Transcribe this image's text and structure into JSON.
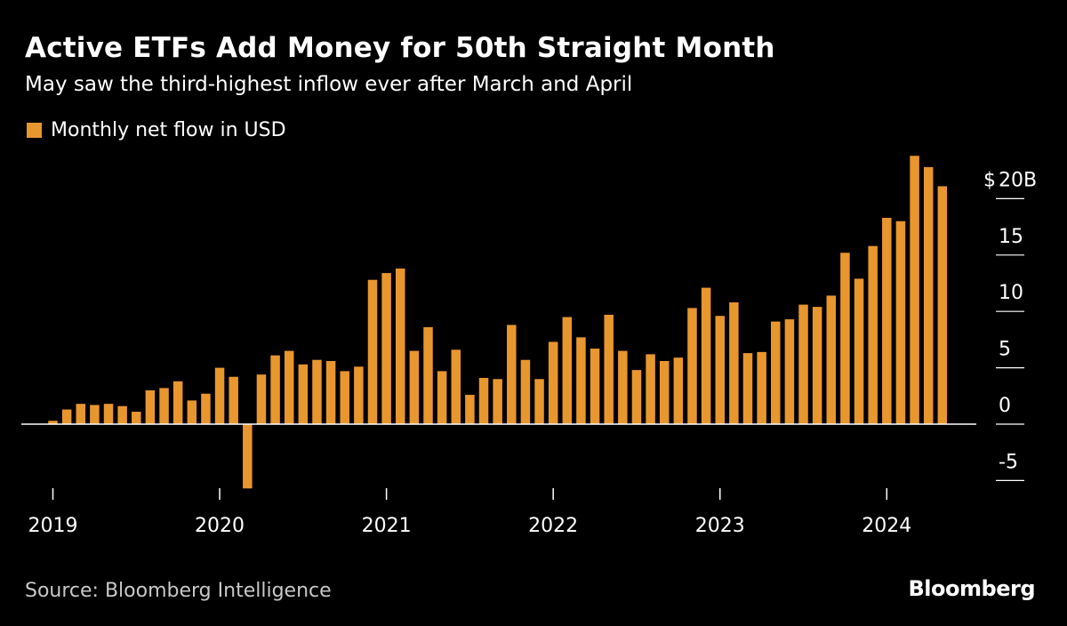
{
  "colors": {
    "bar": "#e8962e",
    "background": "#000000",
    "axis": "#ffffff",
    "tick": "#ffffff"
  },
  "chart_data": {
    "type": "bar",
    "title": "Active ETFs Add Money for 50th Straight Month",
    "subtitle": "May saw the third-highest inflow ever after March and April",
    "legend": [
      "Monthly net flow in USD"
    ],
    "y_unit_label": "$",
    "y_ticks": [
      {
        "value": 20,
        "label": "20B"
      },
      {
        "value": 15,
        "label": "15"
      },
      {
        "value": 10,
        "label": "10"
      },
      {
        "value": 5,
        "label": "5"
      },
      {
        "value": 0,
        "label": "0"
      },
      {
        "value": -5,
        "label": "-5"
      }
    ],
    "ylim": [
      -5.8,
      24
    ],
    "x_ticks": [
      {
        "index": 0,
        "label": "2019"
      },
      {
        "index": 12,
        "label": "2020"
      },
      {
        "index": 24,
        "label": "2021"
      },
      {
        "index": 36,
        "label": "2022"
      },
      {
        "index": 48,
        "label": "2023"
      },
      {
        "index": 60,
        "label": "2024"
      }
    ],
    "categories": [
      "2019-01",
      "2019-02",
      "2019-03",
      "2019-04",
      "2019-05",
      "2019-06",
      "2019-07",
      "2019-08",
      "2019-09",
      "2019-10",
      "2019-11",
      "2019-12",
      "2020-01",
      "2020-02",
      "2020-03",
      "2020-04",
      "2020-05",
      "2020-06",
      "2020-07",
      "2020-08",
      "2020-09",
      "2020-10",
      "2020-11",
      "2020-12",
      "2021-01",
      "2021-02",
      "2021-03",
      "2021-04",
      "2021-05",
      "2021-06",
      "2021-07",
      "2021-08",
      "2021-09",
      "2021-10",
      "2021-11",
      "2021-12",
      "2022-01",
      "2022-02",
      "2022-03",
      "2022-04",
      "2022-05",
      "2022-06",
      "2022-07",
      "2022-08",
      "2022-09",
      "2022-10",
      "2022-11",
      "2022-12",
      "2023-01",
      "2023-02",
      "2023-03",
      "2023-04",
      "2023-05",
      "2023-06",
      "2023-07",
      "2023-08",
      "2023-09",
      "2023-10",
      "2023-11",
      "2023-12",
      "2024-01",
      "2024-02",
      "2024-03",
      "2024-04",
      "2024-05"
    ],
    "values": [
      0.3,
      1.3,
      1.8,
      1.7,
      1.8,
      1.6,
      1.1,
      3.0,
      3.2,
      3.8,
      2.1,
      2.7,
      5.0,
      4.2,
      -5.7,
      4.4,
      6.1,
      6.5,
      5.3,
      5.7,
      5.6,
      4.7,
      5.1,
      12.8,
      13.4,
      13.8,
      6.5,
      8.6,
      4.7,
      6.6,
      2.6,
      4.1,
      4.0,
      8.8,
      5.7,
      4.0,
      7.3,
      9.5,
      7.7,
      6.7,
      9.7,
      6.5,
      4.8,
      6.2,
      5.6,
      5.9,
      10.3,
      12.1,
      9.6,
      10.8,
      6.3,
      6.4,
      9.1,
      9.3,
      10.6,
      10.4,
      11.4,
      15.2,
      12.9,
      15.8,
      18.3,
      18.0,
      23.8,
      22.8,
      21.1
    ]
  },
  "source": "Source: Bloomberg Intelligence",
  "brand": "Bloomberg"
}
